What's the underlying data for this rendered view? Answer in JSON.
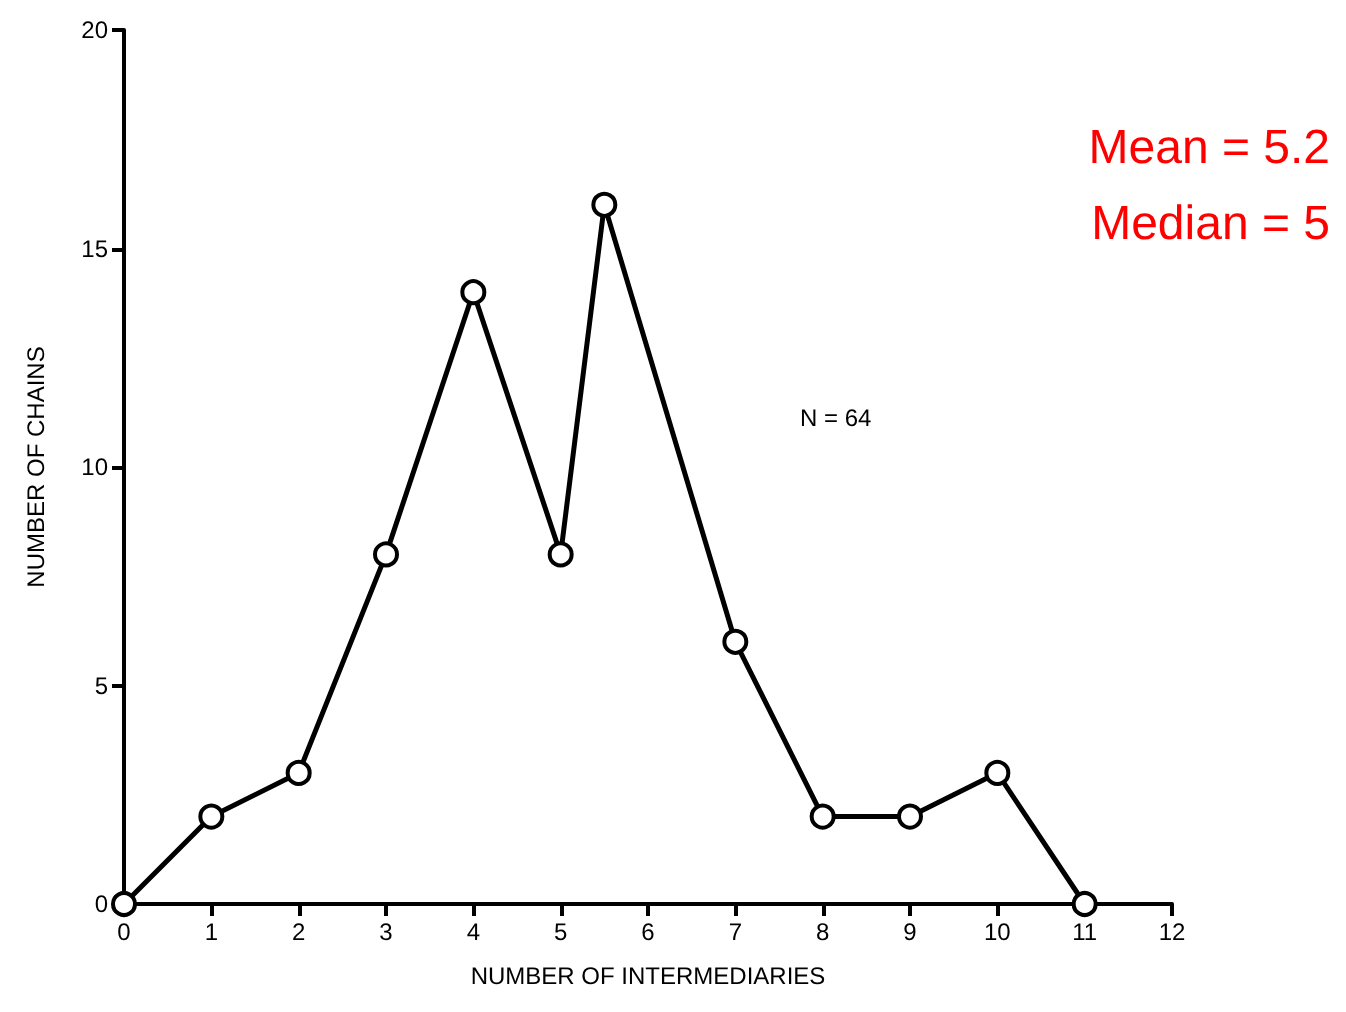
{
  "chart_data": {
    "type": "line",
    "xlabel": "NUMBER OF INTERMEDIARIES",
    "ylabel": "NUMBER OF CHAINS",
    "x": [
      0,
      1,
      2,
      3,
      4,
      5,
      5.5,
      7,
      8,
      9,
      10,
      11
    ],
    "series": [
      {
        "color": "#000000",
        "values": [
          0,
          2,
          3,
          8,
          14,
          8,
          16,
          6,
          2,
          2,
          3,
          0
        ]
      }
    ],
    "xlim": [
      0,
      12
    ],
    "xticks": [
      0,
      1,
      2,
      3,
      4,
      5,
      6,
      7,
      8,
      9,
      10,
      11,
      12
    ],
    "ylim": [
      0,
      20
    ],
    "yticks": [
      0,
      5,
      10,
      15,
      20
    ],
    "grid": false,
    "marker": "circle",
    "line_style": "solid",
    "annotations": [
      "N = 64",
      "Mean = 5.2",
      "Median = 5"
    ]
  }
}
